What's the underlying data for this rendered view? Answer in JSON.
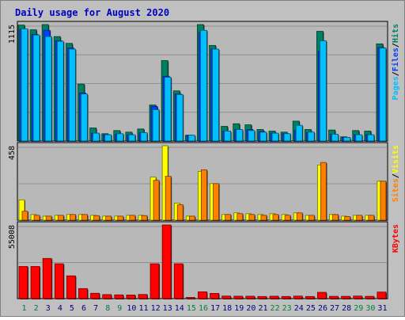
{
  "chart_data": {
    "type": "bar",
    "title": "Daily usage for August 2020",
    "categories": [
      "1",
      "2",
      "3",
      "4",
      "5",
      "6",
      "7",
      "8",
      "9",
      "10",
      "11",
      "12",
      "13",
      "14",
      "15",
      "16",
      "17",
      "18",
      "19",
      "20",
      "21",
      "22",
      "23",
      "24",
      "25",
      "26",
      "27",
      "28",
      "29",
      "30",
      "31"
    ],
    "weekend_days": [
      "1",
      "2",
      "8",
      "9",
      "15",
      "16",
      "22",
      "23",
      "29",
      "30"
    ],
    "colors": {
      "background": "#c0c0c0",
      "panel": "#b8b8b8",
      "title": "#0000c0",
      "hits": "#008060",
      "files": "#0040ff",
      "pages": "#00c0ff",
      "visits": "#ffff00",
      "sites": "#ff8000",
      "kbytes": "#ff0000",
      "weekday_label": "#000080",
      "weekend_label": "#008040"
    },
    "panels": [
      {
        "max_label": "1115",
        "ylim": [
          0,
          1115
        ],
        "legend": [
          {
            "text": "Pages",
            "color": "#00c0ff"
          },
          {
            "text": "/",
            "color": "#000000"
          },
          {
            "text": "Files",
            "color": "#0040ff"
          },
          {
            "text": "/",
            "color": "#000000"
          },
          {
            "text": "Hits",
            "color": "#008060"
          }
        ],
        "series": [
          {
            "name": "Hits",
            "color": "#008060",
            "values": [
              1110,
              1065,
              1115,
              1000,
              935,
              545,
              125,
              70,
              100,
              85,
              115,
              345,
              770,
              480,
              55,
              1115,
              915,
              140,
              165,
              155,
              110,
              95,
              85,
              190,
              110,
              1050,
              105,
              40,
              100,
              95,
              930
            ]
          },
          {
            "name": "Files",
            "color": "#0040ff",
            "values": [
              1070,
              1020,
              1060,
              960,
              890,
              460,
              75,
              60,
              65,
              60,
              80,
              330,
              620,
              450,
              55,
              1040,
              880,
              95,
              110,
              110,
              90,
              75,
              70,
              100,
              80,
              860,
              65,
              35,
              60,
              60,
              895
            ]
          },
          {
            "name": "Pages",
            "color": "#00c0ff",
            "values": [
              1075,
              1015,
              1000,
              955,
              880,
              450,
              75,
              60,
              70,
              60,
              80,
              300,
              610,
              445,
              55,
              1060,
              880,
              95,
              110,
              100,
              85,
              75,
              70,
              150,
              85,
              960,
              65,
              35,
              60,
              60,
              890
            ]
          }
        ]
      },
      {
        "max_label": "458",
        "ylim": [
          0,
          458
        ],
        "legend": [
          {
            "text": "Sites",
            "color": "#ff8000"
          },
          {
            "text": "/",
            "color": "#000000"
          },
          {
            "text": "Visits",
            "color": "#ffff00"
          }
        ],
        "series": [
          {
            "name": "Visits",
            "color": "#ffff00",
            "values": [
              125,
              35,
              25,
              30,
              35,
              35,
              30,
              25,
              25,
              30,
              30,
              265,
              458,
              105,
              25,
              300,
              225,
              35,
              45,
              40,
              35,
              40,
              35,
              45,
              30,
              340,
              35,
              25,
              30,
              30,
              240
            ]
          },
          {
            "name": "Sites",
            "color": "#ff8000",
            "values": [
              55,
              30,
              25,
              30,
              35,
              35,
              28,
              25,
              25,
              30,
              28,
              245,
              270,
              95,
              25,
              310,
              225,
              35,
              40,
              35,
              30,
              35,
              30,
              45,
              30,
              355,
              35,
              22,
              30,
              30,
              240
            ]
          }
        ]
      },
      {
        "max_label": "55008",
        "ylim": [
          0,
          55008
        ],
        "legend": [
          {
            "text": "KBytes",
            "color": "#ff0000"
          }
        ],
        "series": [
          {
            "name": "KBytes",
            "color": "#ff0000",
            "values": [
              24000,
              24000,
              30000,
              26000,
              17000,
              7500,
              4000,
              3000,
              2800,
              2700,
              3100,
              26000,
              55008,
              26000,
              900,
              5100,
              3900,
              1900,
              1800,
              1800,
              1600,
              1800,
              1600,
              1900,
              1600,
              4700,
              1700,
              1700,
              1900,
              1700,
              4900
            ]
          }
        ]
      }
    ]
  }
}
